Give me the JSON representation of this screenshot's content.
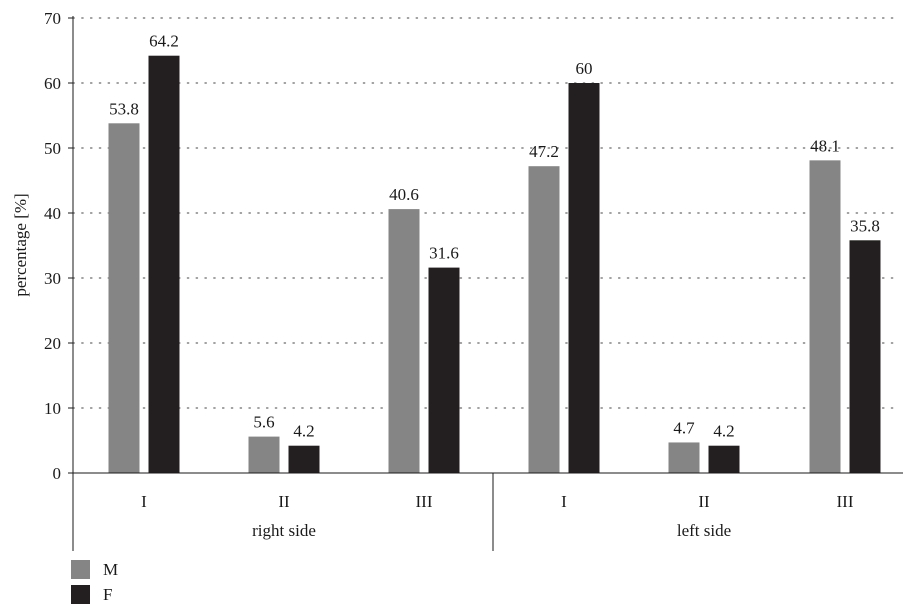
{
  "chart_data": {
    "type": "bar",
    "ylabel": "percentage [%]",
    "ylim": [
      0,
      70
    ],
    "yticks": [
      0,
      10,
      20,
      30,
      40,
      50,
      60,
      70
    ],
    "grid": "horizontal dotted",
    "groups": [
      {
        "label": "right side",
        "categories": [
          "I",
          "II",
          "III"
        ]
      },
      {
        "label": "left side",
        "categories": [
          "I",
          "II",
          "III"
        ]
      }
    ],
    "series": [
      {
        "name": "M",
        "color": "#858585",
        "values": [
          53.8,
          5.6,
          40.6,
          47.2,
          4.7,
          48.1
        ]
      },
      {
        "name": "F",
        "color": "#231f20",
        "values": [
          64.2,
          4.2,
          31.6,
          60,
          4.2,
          35.8
        ]
      }
    ],
    "data_labels": [
      [
        "53.8",
        "5.6",
        "40.6",
        "47.2",
        "4.7",
        "48.1"
      ],
      [
        "64.2",
        "4.2",
        "31.6",
        "60",
        "4.2",
        "35.8"
      ]
    ],
    "legend_position": "bottom-left"
  }
}
